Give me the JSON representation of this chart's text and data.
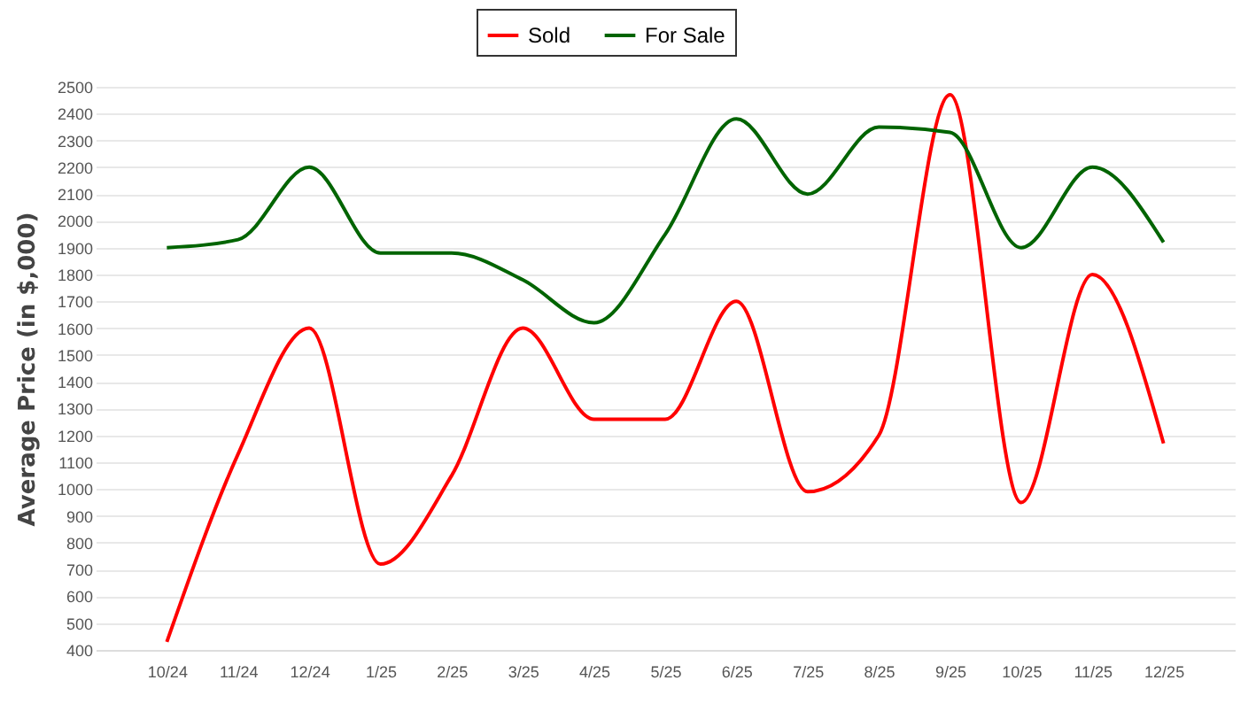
{
  "chart_data": {
    "type": "line",
    "ylabel": "Average Price (in $,000)",
    "categories": [
      "10/24",
      "11/24",
      "12/24",
      "1/25",
      "2/25",
      "3/25",
      "4/25",
      "5/25",
      "6/25",
      "7/25",
      "8/25",
      "9/25",
      "10/25",
      "11/25",
      "12/25"
    ],
    "series": [
      {
        "name": "Sold",
        "color": "#ff0000",
        "values": [
          430,
          1130,
          1600,
          720,
          1050,
          1600,
          1260,
          1260,
          1700,
          990,
          1200,
          2470,
          950,
          1800,
          1170
        ]
      },
      {
        "name": "For Sale",
        "color": "#006400",
        "values": [
          1900,
          1930,
          2200,
          1880,
          1880,
          1780,
          1620,
          1950,
          2380,
          2100,
          2350,
          2330,
          1900,
          2200,
          1920
        ]
      }
    ],
    "ylim": [
      400,
      2500
    ],
    "yticks": [
      400,
      500,
      600,
      700,
      800,
      900,
      1000,
      1100,
      1200,
      1300,
      1400,
      1500,
      1600,
      1700,
      1800,
      1900,
      2000,
      2100,
      2200,
      2300,
      2400,
      2500
    ],
    "grid": "y",
    "legend": "top",
    "marker": "none",
    "line_style": "solid"
  }
}
